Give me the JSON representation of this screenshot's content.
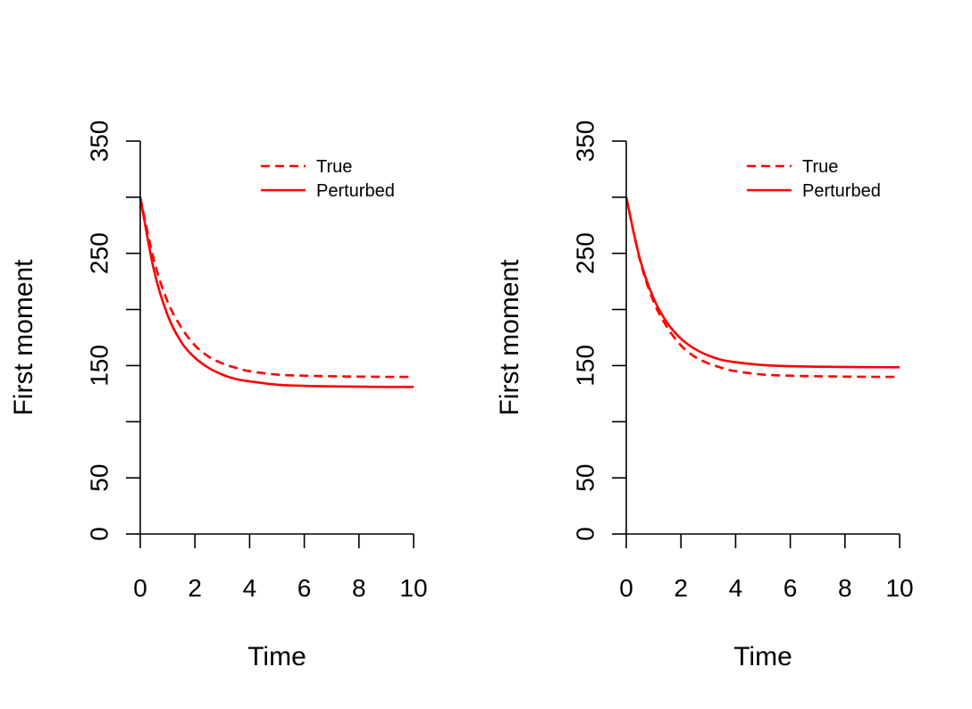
{
  "chart_data": [
    {
      "type": "line",
      "title": "",
      "xlabel": "Time",
      "ylabel": "First moment",
      "xlim": [
        0,
        10
      ],
      "ylim": [
        0,
        350
      ],
      "xticks": [
        "0",
        "2",
        "4",
        "6",
        "8",
        "10"
      ],
      "yticks": [
        "0",
        "50",
        "100",
        "150",
        "200",
        "250",
        "300",
        "350"
      ],
      "ytick_labels_shown": [
        "0",
        "50",
        "",
        "150",
        "",
        "250",
        "",
        "350"
      ],
      "legend_position": "top-right",
      "color": "#ff0000",
      "x": [
        0,
        0.5,
        1,
        1.5,
        2,
        2.5,
        3,
        3.5,
        4,
        5,
        6,
        7,
        8,
        9,
        10
      ],
      "series": [
        {
          "name": "True",
          "style": "dashed",
          "values": [
            300,
            244,
            207,
            184,
            168,
            158,
            152,
            148,
            145,
            142,
            141,
            140.5,
            140.2,
            140,
            140
          ]
        },
        {
          "name": "Perturbed",
          "style": "solid",
          "values": [
            300,
            235,
            195,
            171,
            157,
            148,
            142,
            138,
            136,
            133,
            132,
            131.5,
            131.2,
            131,
            131
          ]
        }
      ]
    },
    {
      "type": "line",
      "title": "",
      "xlabel": "Time",
      "ylabel": "First moment",
      "xlim": [
        0,
        10
      ],
      "ylim": [
        0,
        350
      ],
      "xticks": [
        "0",
        "2",
        "4",
        "6",
        "8",
        "10"
      ],
      "yticks": [
        "0",
        "50",
        "100",
        "150",
        "200",
        "250",
        "300",
        "350"
      ],
      "ytick_labels_shown": [
        "0",
        "50",
        "",
        "150",
        "",
        "250",
        "",
        "350"
      ],
      "legend_position": "top-right",
      "color": "#ff0000",
      "x": [
        0,
        0.5,
        1,
        1.5,
        2,
        2.5,
        3,
        3.5,
        4,
        5,
        6,
        7,
        8,
        9,
        10
      ],
      "series": [
        {
          "name": "True",
          "style": "dashed",
          "values": [
            300,
            244,
            207,
            184,
            168,
            158,
            152,
            148,
            145,
            142,
            141,
            140.5,
            140.2,
            140,
            140
          ]
        },
        {
          "name": "Perturbed",
          "style": "solid",
          "values": [
            300,
            245,
            210,
            188,
            174,
            165,
            159,
            155,
            153,
            150.5,
            149.5,
            149,
            148.8,
            148.6,
            148.5
          ]
        }
      ]
    }
  ]
}
